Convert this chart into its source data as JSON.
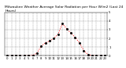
{
  "title": "Milwaukee Weather Average Solar Radiation per Hour W/m2 (Last 24 Hours)",
  "hours": [
    0,
    1,
    2,
    3,
    4,
    5,
    6,
    7,
    8,
    9,
    10,
    11,
    12,
    13,
    14,
    15,
    16,
    17,
    18,
    19,
    20,
    21,
    22,
    23
  ],
  "values": [
    0,
    0,
    0,
    0,
    0,
    3,
    5,
    30,
    110,
    150,
    170,
    200,
    250,
    370,
    310,
    260,
    210,
    150,
    60,
    15,
    3,
    0,
    0,
    0
  ],
  "line_color": "#ff0000",
  "marker_color": "#000000",
  "grid_color": "#888888",
  "bg_color": "#ffffff",
  "ylim": [
    0,
    500
  ],
  "yticks": [
    0,
    100,
    200,
    300,
    400,
    500
  ],
  "ytick_labels": [
    "0",
    "1",
    "2",
    "3",
    "4",
    "5"
  ],
  "title_fontsize": 3.2,
  "tick_fontsize": 2.8
}
